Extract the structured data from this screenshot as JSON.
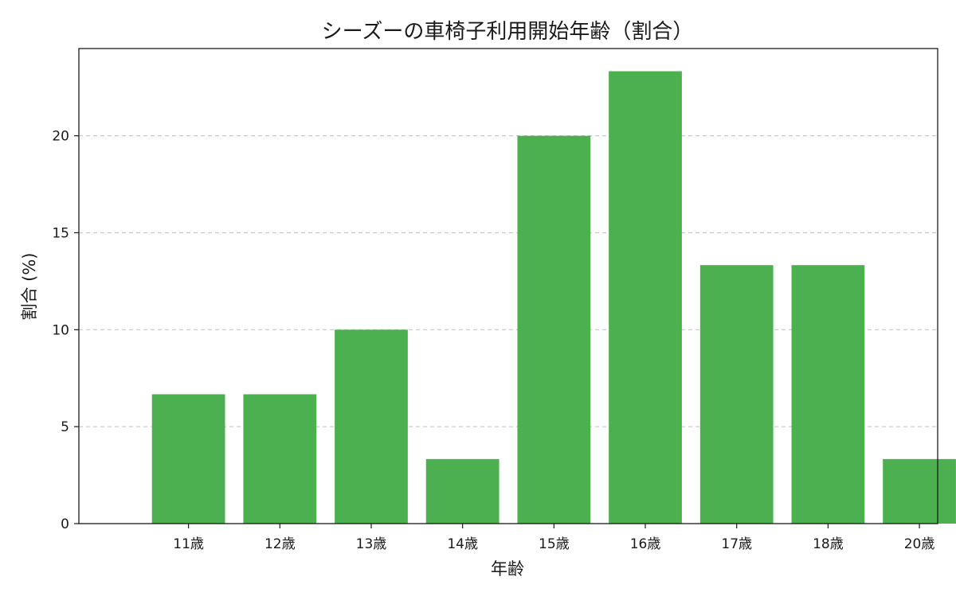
{
  "chart_data": {
    "type": "bar",
    "title": "シーズーの車椅子利用開始年齢（割合）",
    "xlabel": "年齢",
    "ylabel": "割合 (%)",
    "categories": [
      "11歳",
      "12歳",
      "13歳",
      "14歳",
      "15歳",
      "16歳",
      "17歳",
      "18歳",
      "20歳"
    ],
    "values": [
      6.67,
      6.67,
      10.0,
      3.33,
      20.0,
      23.33,
      13.33,
      13.33,
      3.33
    ],
    "ylim": [
      0,
      24.5
    ],
    "yticks": [
      0,
      5,
      10,
      15,
      20
    ],
    "grid": "horizontal-dashed",
    "colors": {
      "bar": "#4caf50",
      "grid": "#c8c8c8",
      "axis": "#1a1a1a"
    }
  }
}
